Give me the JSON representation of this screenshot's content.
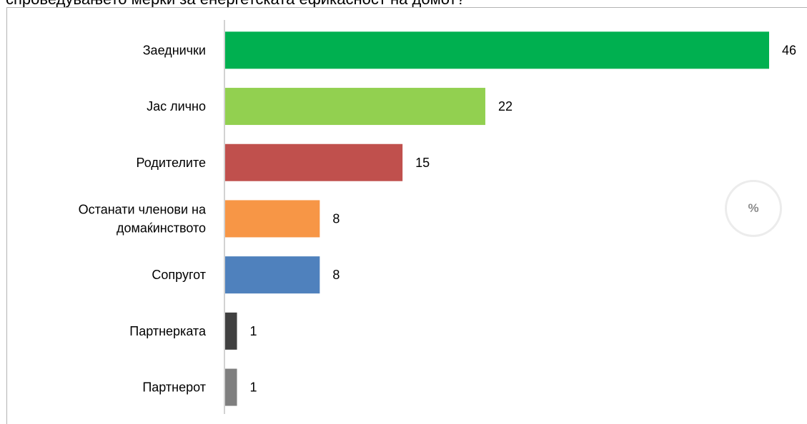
{
  "title": "спроведувањето мерки за енергетската ефикасност на домот?",
  "unit_badge": "%",
  "chart_data": {
    "type": "bar",
    "orientation": "horizontal",
    "categories": [
      "Заеднички",
      "Јас лично",
      "Родителите",
      "Останати членови на домаќинството",
      "Сопругот",
      "Партнерката",
      "Партнерот"
    ],
    "category_lines": [
      [
        "Заеднички"
      ],
      [
        "Јас лично"
      ],
      [
        "Родителите"
      ],
      [
        "Останати членови на",
        "домаќинството"
      ],
      [
        "Сопругот"
      ],
      [
        "Партнерката"
      ],
      [
        "Партнерот"
      ]
    ],
    "values": [
      46,
      22,
      15,
      8,
      8,
      1,
      1
    ],
    "colors": [
      "#00b050",
      "#92d050",
      "#c0504d",
      "#f79646",
      "#4f81bd",
      "#404040",
      "#7f7f7f"
    ],
    "xlim": [
      0,
      46
    ],
    "grid": false,
    "legend": "none",
    "data_labels": true
  }
}
